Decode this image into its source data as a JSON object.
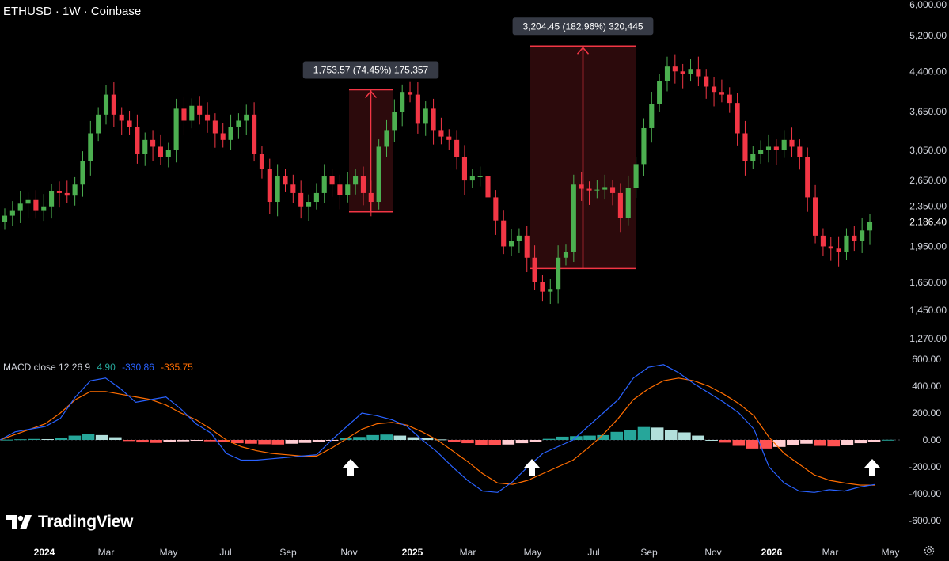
{
  "header": {
    "title": "ETHUSD · 1W · Coinbase"
  },
  "macd_legend": {
    "name": "MACD close 12 26 9",
    "hist": "4.90",
    "macd": "-330.86",
    "signal": "-335.75"
  },
  "logo": {
    "text": "TradingView"
  },
  "last_price_label": "2,186.40",
  "measures": [
    {
      "label": "1,753.57 (74.45%) 175,357"
    },
    {
      "label": "3,204.45 (182.96%) 320,445"
    }
  ],
  "colors": {
    "up": "#26a69a",
    "up_candle": "#4caf50",
    "down": "#f23645",
    "hist_up_strong": "#26a69a",
    "hist_up_weak": "#b2dfdb",
    "hist_down_strong": "#ff5252",
    "hist_down_weak": "#ffcdd2",
    "macd_line": "#2962ff",
    "signal_line": "#ff6d00",
    "measure": "#f23645"
  },
  "icons": {
    "settings": "settings-icon",
    "logo": "tradingview-logo-icon",
    "signal_arrow": "up-arrow-icon"
  },
  "chart_data": [
    {
      "type": "candlestick",
      "title": "ETHUSD · 1W · Coinbase",
      "scale": "log",
      "ylim": [
        1270,
        6000
      ],
      "y_ticks": [
        "6,000.00",
        "5,200.00",
        "4,400.00",
        "3,650.00",
        "3,050.00",
        "2,650.00",
        "2,350.00",
        "1,950.00",
        "1,650.00",
        "1,450.00",
        "1,270.00"
      ],
      "x_ticks": [
        "2024",
        "Mar",
        "May",
        "Jul",
        "Sep",
        "Nov",
        "2025",
        "Mar",
        "May",
        "Jul",
        "Sep",
        "Nov",
        "2026",
        "Mar",
        "May"
      ],
      "close_series": [
        2250,
        2300,
        2380,
        2420,
        2300,
        2350,
        2520,
        2500,
        2470,
        2600,
        2900,
        3300,
        3600,
        3950,
        3600,
        3500,
        3400,
        3000,
        3200,
        3100,
        2950,
        3050,
        3700,
        3500,
        3750,
        3600,
        3500,
        3300,
        3200,
        3400,
        3500,
        3600,
        3000,
        2800,
        2400,
        2700,
        2600,
        2500,
        2350,
        2400,
        2500,
        2700,
        2600,
        2480,
        2600,
        2700,
        2500,
        2400,
        3100,
        3350,
        3650,
        4000,
        3950,
        3450,
        3700,
        3350,
        3250,
        3200,
        2950,
        2650,
        2700,
        2700,
        2450,
        2200,
        1950,
        2000,
        2050,
        1850,
        1650,
        1580,
        1600,
        1850,
        1900,
        2600,
        2550,
        2530,
        2540,
        2570,
        2500,
        2230,
        2560,
        2860,
        3380,
        3780,
        4200,
        4500,
        4400,
        4350,
        4450,
        4300,
        4100,
        4000,
        3950,
        3800,
        3300,
        2900,
        3000,
        3050,
        3100,
        3050,
        3200,
        3100,
        2950,
        2450,
        2050,
        1950,
        1930,
        1900,
        2050,
        2000,
        2100,
        2186.4
      ],
      "measures": [
        {
          "from": 2290,
          "to": 4040,
          "change": "1,753.57",
          "pct": "74.45%"
        },
        {
          "from": 1760,
          "to": 4950,
          "change": "3,204.45",
          "pct": "182.96%"
        }
      ],
      "last_price": 2186.4
    },
    {
      "type": "macd",
      "title": "MACD close 12 26 9",
      "ylim": [
        -600,
        600
      ],
      "y_ticks": [
        "600.00",
        "400.00",
        "200.00",
        "0.00",
        "-200.00",
        "-400.00",
        "-600.00"
      ],
      "macd": [
        0,
        60,
        80,
        100,
        160,
        320,
        440,
        460,
        380,
        280,
        300,
        320,
        230,
        120,
        50,
        -100,
        -150,
        -150,
        -140,
        -130,
        -120,
        -110,
        0,
        100,
        200,
        180,
        150,
        100,
        0,
        -90,
        -200,
        -300,
        -380,
        -390,
        -310,
        -200,
        -100,
        -50,
        0,
        100,
        200,
        300,
        460,
        540,
        560,
        500,
        420,
        350,
        280,
        200,
        80,
        -200,
        -320,
        -380,
        -390,
        -370,
        -380,
        -350,
        -331
      ],
      "signal": [
        0,
        40,
        80,
        120,
        200,
        300,
        360,
        360,
        340,
        320,
        300,
        260,
        200,
        150,
        80,
        0,
        -50,
        -80,
        -100,
        -110,
        -120,
        -120,
        -60,
        10,
        80,
        120,
        130,
        110,
        60,
        0,
        -80,
        -160,
        -250,
        -320,
        -330,
        -300,
        -250,
        -200,
        -150,
        -60,
        40,
        160,
        300,
        380,
        440,
        460,
        440,
        400,
        340,
        270,
        180,
        20,
        -100,
        -180,
        -260,
        -300,
        -320,
        -335,
        -335.75
      ],
      "histogram": [
        0.05,
        0.12,
        0.18,
        0.15,
        0.35,
        0.8,
        1.1,
        0.9,
        0.5,
        -0.2,
        -0.45,
        -0.55,
        -0.4,
        -0.25,
        -0.15,
        -0.25,
        -0.4,
        -0.6,
        -0.7,
        -0.8,
        -0.85,
        -0.7,
        -0.55,
        -0.3,
        -0.05,
        0.3,
        0.55,
        0.9,
        1.0,
        0.8,
        0.5,
        0.3,
        0.1,
        -0.3,
        -0.6,
        -0.9,
        -0.95,
        -0.85,
        -0.6,
        -0.3,
        0.2,
        0.6,
        0.7,
        0.8,
        0.9,
        1.5,
        1.9,
        2.4,
        2.3,
        1.9,
        1.4,
        0.8,
        0.0,
        -0.5,
        -1.1,
        -1.6,
        -1.6,
        -1.3,
        -1.0,
        -0.7,
        -1.1,
        -1.2,
        -1.0,
        -0.6,
        -0.3,
        0.03
      ],
      "signals": [
        "buy",
        "buy",
        "buy"
      ]
    }
  ]
}
